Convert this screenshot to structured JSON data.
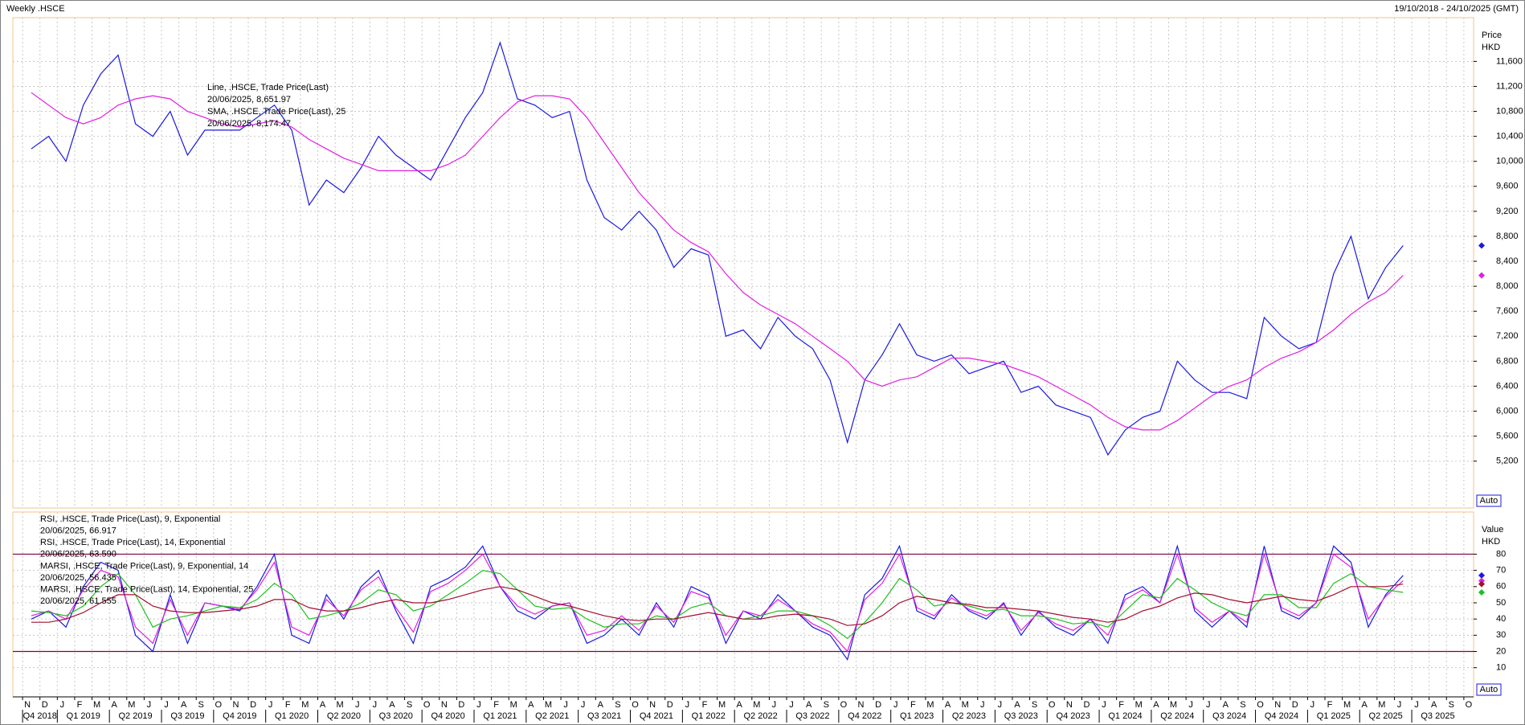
{
  "header": {
    "title": "Weekly .HSCE",
    "range": "19/10/2018 - 24/10/2025 (GMT)"
  },
  "chart_data": [
    {
      "type": "line",
      "axis_title": [
        "Price",
        "HKD"
      ],
      "auto_label": "Auto",
      "grid": true,
      "ylim": [
        4450,
        12300
      ],
      "yticks": [
        {
          "value": 5200,
          "label": "5,200"
        },
        {
          "value": 5600,
          "label": "5,600"
        },
        {
          "value": 6000,
          "label": "6,000"
        },
        {
          "value": 6400,
          "label": "6,400"
        },
        {
          "value": 6800,
          "label": "6,800"
        },
        {
          "value": 7200,
          "label": "7,200"
        },
        {
          "value": 7600,
          "label": "7,600"
        },
        {
          "value": 8000,
          "label": "8,000"
        },
        {
          "value": 8400,
          "label": "8,400"
        },
        {
          "value": 8800,
          "label": "8,800"
        },
        {
          "value": 9200,
          "label": "9,200"
        },
        {
          "value": 9600,
          "label": "9,600"
        },
        {
          "value": 10000,
          "label": "10,000"
        },
        {
          "value": 10400,
          "label": "10,400"
        },
        {
          "value": 10800,
          "label": "10,800"
        },
        {
          "value": 11200,
          "label": "11,200"
        },
        {
          "value": 11600,
          "label": "11,600"
        }
      ],
      "series": [
        {
          "name": "Line, .HSCE, Trade Price(Last)",
          "legend_value": "20/06/2025, 8,651.97",
          "color": "#1a1ae0",
          "values": [
            10200,
            10400,
            10000,
            10900,
            11400,
            11700,
            10600,
            10400,
            10800,
            10100,
            10500,
            10500,
            10500,
            10700,
            10900,
            10500,
            9300,
            9700,
            9500,
            9900,
            10400,
            10100,
            9900,
            9700,
            10200,
            10700,
            11100,
            11900,
            11000,
            10900,
            10700,
            10800,
            9700,
            9100,
            8900,
            9200,
            8900,
            8300,
            8600,
            8500,
            7200,
            7300,
            7000,
            7500,
            7200,
            7000,
            6500,
            5500,
            6500,
            6900,
            7400,
            6900,
            6800,
            6900,
            6600,
            6700,
            6800,
            6300,
            6400,
            6100,
            6000,
            5900,
            5300,
            5700,
            5900,
            6000,
            6800,
            6500,
            6300,
            6300,
            6200,
            7500,
            7200,
            7000,
            7100,
            8200,
            8800,
            7800,
            8300,
            8651.97,
            null,
            null,
            null,
            null
          ]
        },
        {
          "name": "SMA, .HSCE, Trade Price(Last), 25",
          "legend_value": "20/06/2025, 8,174.47",
          "color": "#e020e0",
          "values": [
            11100,
            10900,
            10700,
            10600,
            10700,
            10900,
            11000,
            11050,
            11000,
            10800,
            10700,
            10600,
            10550,
            10600,
            10650,
            10550,
            10350,
            10200,
            10050,
            9950,
            9850,
            9850,
            9850,
            9850,
            9950,
            10100,
            10400,
            10700,
            10950,
            11050,
            11050,
            11000,
            10700,
            10300,
            9900,
            9500,
            9200,
            8900,
            8700,
            8550,
            8200,
            7900,
            7700,
            7550,
            7400,
            7200,
            7000,
            6800,
            6500,
            6400,
            6500,
            6550,
            6700,
            6850,
            6850,
            6800,
            6750,
            6650,
            6550,
            6400,
            6250,
            6100,
            5900,
            5750,
            5700,
            5700,
            5850,
            6050,
            6250,
            6400,
            6500,
            6700,
            6850,
            6950,
            7100,
            7300,
            7550,
            7750,
            7900,
            8174.47,
            null,
            null,
            null,
            null
          ]
        }
      ]
    },
    {
      "type": "line",
      "axis_title": [
        "Value",
        "HKD"
      ],
      "auto_label": "Auto",
      "grid": true,
      "ylim": [
        -8,
        106
      ],
      "yticks": [
        10,
        20,
        30,
        40,
        50,
        60,
        70,
        80
      ],
      "levels": [
        20,
        80
      ],
      "level_color": "#800040",
      "categories": [
        "N",
        "D",
        "J",
        "F",
        "M",
        "A",
        "M",
        "J",
        "J",
        "A",
        "S",
        "O",
        "N",
        "D",
        "J",
        "F",
        "M",
        "A",
        "M",
        "J",
        "J",
        "A",
        "S",
        "O",
        "N",
        "D",
        "J",
        "F",
        "M",
        "A",
        "M",
        "J",
        "J",
        "A",
        "S",
        "O",
        "N",
        "D",
        "J",
        "F",
        "M",
        "A",
        "M",
        "J",
        "J",
        "A",
        "S",
        "O",
        "N",
        "D",
        "J",
        "F",
        "M",
        "A",
        "M",
        "J",
        "J",
        "A",
        "S",
        "O",
        "N",
        "D",
        "J",
        "F",
        "M",
        "A",
        "M",
        "J",
        "J",
        "A",
        "S",
        "O",
        "N",
        "D",
        "J",
        "F",
        "M",
        "A",
        "M",
        "J",
        "J",
        "A",
        "S",
        "O"
      ],
      "quarters": [
        "Q4 2018",
        "Q1 2019",
        "Q2 2019",
        "Q3 2019",
        "Q4 2019",
        "Q1 2020",
        "Q2 2020",
        "Q3 2020",
        "Q4 2020",
        "Q1 2021",
        "Q2 2021",
        "Q3 2021",
        "Q4 2021",
        "Q1 2022",
        "Q2 2022",
        "Q3 2022",
        "Q4 2022",
        "Q1 2023",
        "Q2 2023",
        "Q3 2023",
        "Q4 2023",
        "Q1 2024",
        "Q2 2024",
        "Q3 2024",
        "Q4 2024",
        "Q1 2025",
        "Q2 2025",
        "Q3 2025"
      ],
      "series": [
        {
          "name": "RSI, .HSCE, Trade Price(Last), 9, Exponential",
          "legend_value": "20/06/2025, 66.917",
          "color": "#1a1ae0",
          "values": [
            40,
            45,
            35,
            60,
            75,
            70,
            30,
            20,
            55,
            25,
            50,
            48,
            45,
            60,
            80,
            30,
            25,
            55,
            40,
            60,
            70,
            45,
            25,
            60,
            65,
            72,
            85,
            60,
            45,
            40,
            48,
            50,
            25,
            30,
            40,
            30,
            50,
            35,
            60,
            55,
            25,
            45,
            40,
            55,
            45,
            35,
            30,
            15,
            55,
            65,
            85,
            45,
            40,
            55,
            45,
            40,
            50,
            30,
            45,
            35,
            30,
            40,
            25,
            55,
            60,
            50,
            85,
            45,
            35,
            45,
            35,
            85,
            45,
            40,
            50,
            85,
            75,
            35,
            55,
            66.917,
            null,
            null,
            null,
            null
          ]
        },
        {
          "name": "RSI, .HSCE, Trade Price(Last), 14, Exponential",
          "legend_value": "20/06/2025, 63.590",
          "color": "#e020e0",
          "values": [
            42,
            45,
            40,
            58,
            70,
            66,
            35,
            25,
            52,
            30,
            50,
            48,
            46,
            58,
            75,
            35,
            30,
            52,
            42,
            58,
            66,
            47,
            32,
            57,
            62,
            70,
            80,
            60,
            48,
            43,
            48,
            50,
            30,
            33,
            42,
            33,
            48,
            38,
            57,
            53,
            30,
            45,
            42,
            52,
            45,
            37,
            32,
            20,
            52,
            62,
            80,
            47,
            42,
            53,
            46,
            42,
            49,
            33,
            44,
            37,
            33,
            40,
            30,
            52,
            58,
            50,
            80,
            47,
            38,
            45,
            38,
            80,
            47,
            42,
            50,
            80,
            72,
            40,
            54,
            63.59,
            null,
            null,
            null,
            null
          ]
        },
        {
          "name": "MARSI, .HSCE, Trade Price(Last), 9, Exponential, 14",
          "legend_value": "20/06/2025, 56.435",
          "color": "#20c020",
          "values": [
            45,
            44,
            42,
            48,
            60,
            68,
            55,
            35,
            40,
            42,
            45,
            48,
            47,
            52,
            62,
            55,
            40,
            42,
            45,
            50,
            58,
            55,
            45,
            48,
            55,
            62,
            70,
            68,
            58,
            48,
            46,
            47,
            40,
            35,
            37,
            37,
            42,
            40,
            47,
            50,
            42,
            40,
            42,
            45,
            45,
            42,
            36,
            28,
            38,
            50,
            65,
            58,
            48,
            50,
            48,
            45,
            46,
            42,
            42,
            40,
            37,
            38,
            35,
            45,
            55,
            53,
            65,
            58,
            50,
            45,
            42,
            55,
            55,
            47,
            47,
            62,
            68,
            60,
            58,
            56.435,
            null,
            null,
            null,
            null
          ]
        },
        {
          "name": "MARSI, .HSCE, Trade Price(Last), 14, Exponential, 25",
          "legend_value": "20/06/2025, 61.555",
          "color": "#a01030",
          "values": [
            38,
            38,
            40,
            44,
            50,
            55,
            55,
            48,
            45,
            44,
            44,
            45,
            46,
            48,
            52,
            52,
            47,
            45,
            45,
            47,
            50,
            52,
            50,
            50,
            52,
            55,
            58,
            60,
            58,
            54,
            50,
            48,
            45,
            42,
            40,
            39,
            40,
            40,
            42,
            44,
            42,
            40,
            40,
            42,
            43,
            42,
            40,
            36,
            37,
            42,
            50,
            54,
            52,
            50,
            49,
            47,
            47,
            46,
            45,
            43,
            41,
            40,
            38,
            40,
            45,
            48,
            53,
            56,
            55,
            52,
            50,
            52,
            54,
            52,
            51,
            55,
            60,
            60,
            60,
            61.555,
            null,
            null,
            null,
            null
          ]
        }
      ]
    }
  ]
}
